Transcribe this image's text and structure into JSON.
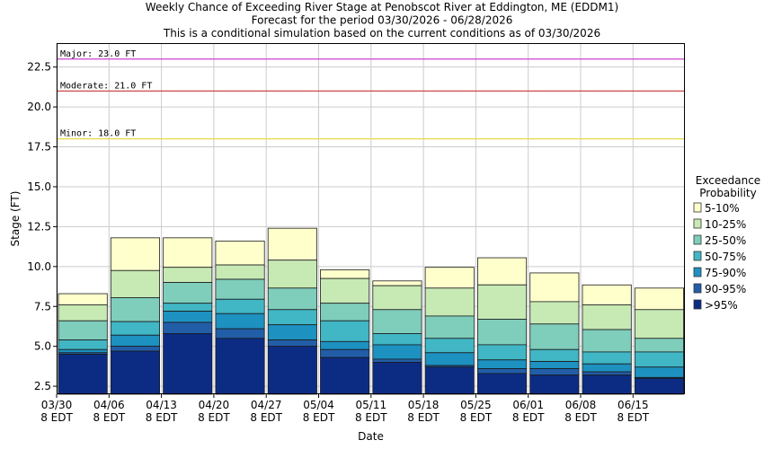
{
  "chart_data": {
    "type": "bar",
    "title": [
      "Weekly Chance of Exceeding River Stage at Penobscot River at Eddington, ME (EDDM1)",
      "Forecast for the period 03/30/2026 - 06/28/2026",
      "This is a conditional simulation based on the current conditions as of 03/30/2026"
    ],
    "xlabel": "Date",
    "ylabel": "Stage (FT)",
    "ylim": [
      2.0,
      24.0
    ],
    "y_ticks": [
      "2.5",
      "5.0",
      "7.5",
      "10.0",
      "12.5",
      "15.0",
      "17.5",
      "20.0",
      "22.5"
    ],
    "x_ticks": [
      {
        "date": "03/30",
        "tz": "8 EDT"
      },
      {
        "date": "04/06",
        "tz": "8 EDT"
      },
      {
        "date": "04/13",
        "tz": "8 EDT"
      },
      {
        "date": "04/20",
        "tz": "8 EDT"
      },
      {
        "date": "04/27",
        "tz": "8 EDT"
      },
      {
        "date": "05/04",
        "tz": "8 EDT"
      },
      {
        "date": "05/11",
        "tz": "8 EDT"
      },
      {
        "date": "05/18",
        "tz": "8 EDT"
      },
      {
        "date": "05/25",
        "tz": "8 EDT"
      },
      {
        "date": "06/01",
        "tz": "8 EDT"
      },
      {
        "date": "06/08",
        "tz": "8 EDT"
      },
      {
        "date": "06/15",
        "tz": "8 EDT"
      }
    ],
    "grid": true,
    "thresholds": [
      {
        "label": "Major: 23.0 FT",
        "value": 23.0,
        "color": "#cc44cc"
      },
      {
        "label": "Moderate: 21.0 FT",
        "value": 21.0,
        "color": "#cc3333"
      },
      {
        "label": "Minor: 18.0 FT",
        "value": 18.0,
        "color": "#e6d84a"
      }
    ],
    "legend": {
      "title": [
        "Exceedance",
        "Probability"
      ],
      "placement": "right",
      "entries": [
        {
          "label": "5-10%",
          "color": "#ffffcc"
        },
        {
          "label": "10-25%",
          "color": "#c7e9b4"
        },
        {
          "label": "25-50%",
          "color": "#7fcdbb"
        },
        {
          "label": "50-75%",
          "color": "#41b6c4"
        },
        {
          "label": "75-90%",
          "color": "#1d91c0"
        },
        {
          "label": "90-95%",
          "color": "#225ea8"
        },
        {
          "label": ">95%",
          "color": "#0c2c84"
        }
      ]
    },
    "bars": [
      {
        "date": "03/30",
        "levels": [
          8.3,
          7.6,
          6.6,
          5.4,
          4.8,
          4.6,
          4.5
        ]
      },
      {
        "date": "04/06",
        "levels": [
          11.8,
          9.75,
          8.05,
          6.55,
          5.7,
          5.0,
          4.7
        ]
      },
      {
        "date": "04/13",
        "levels": [
          11.8,
          9.95,
          9.0,
          7.7,
          7.2,
          6.5,
          5.8
        ]
      },
      {
        "date": "04/20",
        "levels": [
          11.6,
          10.1,
          9.2,
          7.95,
          7.05,
          6.1,
          5.5
        ]
      },
      {
        "date": "04/27",
        "levels": [
          12.4,
          10.4,
          8.65,
          7.3,
          6.35,
          5.4,
          5.0
        ]
      },
      {
        "date": "05/04",
        "levels": [
          9.8,
          9.25,
          7.7,
          6.6,
          5.3,
          4.8,
          4.3
        ]
      },
      {
        "date": "05/11",
        "levels": [
          9.1,
          8.8,
          7.3,
          5.8,
          5.1,
          4.2,
          4.0
        ]
      },
      {
        "date": "05/18",
        "levels": [
          9.95,
          8.65,
          6.9,
          5.5,
          4.6,
          3.8,
          3.7
        ]
      },
      {
        "date": "05/25",
        "levels": [
          10.55,
          8.85,
          6.7,
          5.1,
          4.15,
          3.6,
          3.3
        ]
      },
      {
        "date": "06/01",
        "levels": [
          9.6,
          7.8,
          6.4,
          4.8,
          4.05,
          3.6,
          3.2
        ]
      },
      {
        "date": "06/08",
        "levels": [
          8.85,
          7.6,
          6.05,
          4.65,
          3.9,
          3.4,
          3.2
        ]
      },
      {
        "date": "06/15",
        "levels": [
          8.65,
          7.3,
          5.5,
          4.65,
          3.7,
          3.05,
          3.0
        ]
      }
    ]
  }
}
